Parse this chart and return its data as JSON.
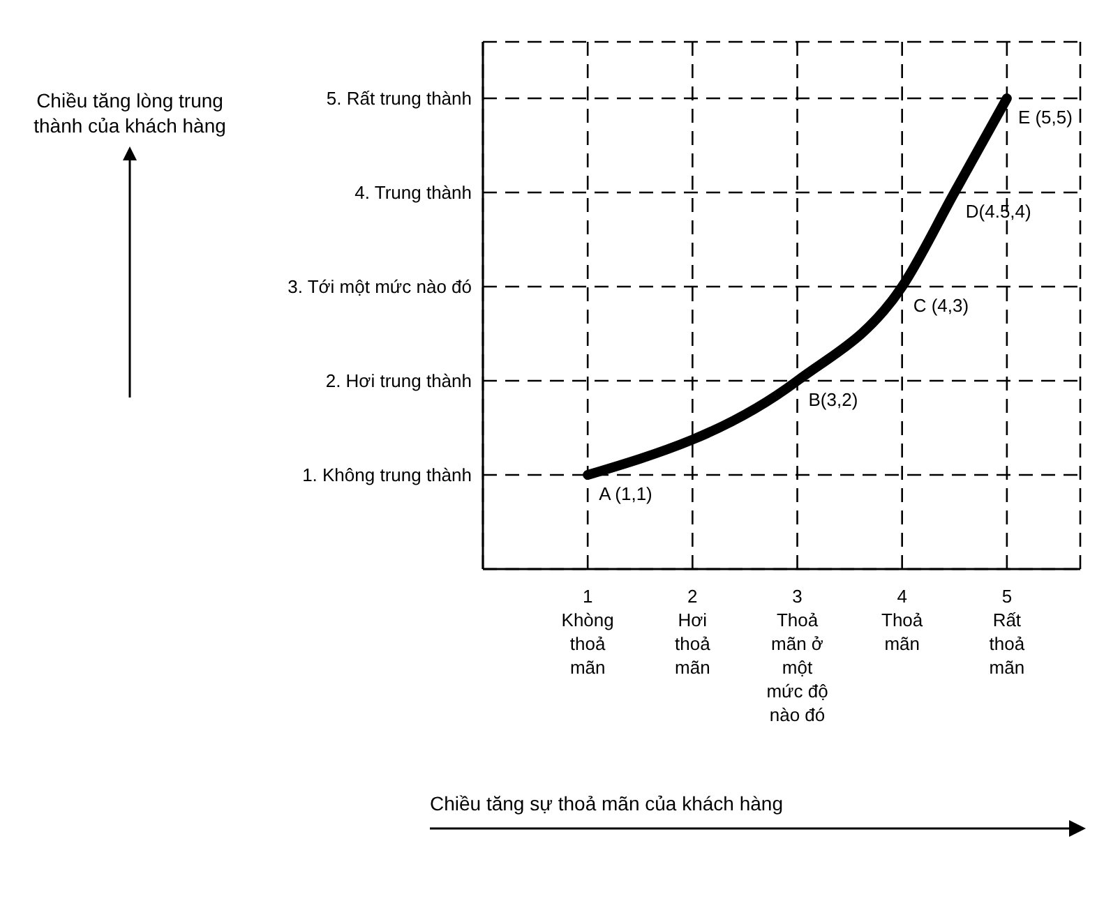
{
  "chart_data": {
    "type": "line",
    "ylabel": "Chiều tăng lòng trung thành của khách hàng",
    "xlabel": "Chiều tăng sự thoả mãn của khách hàng",
    "x": [
      1,
      3,
      4,
      4.5,
      5
    ],
    "series": [
      {
        "color": "#000000",
        "values": [
          1,
          2,
          3,
          4,
          5
        ]
      }
    ],
    "xlim": [
      0,
      5.7
    ],
    "ylim": [
      0,
      5.6
    ],
    "xticks": [
      {
        "value": 1,
        "label": "1\nKhòng\nthoả\nmãn"
      },
      {
        "value": 2,
        "label": "2\nHơi\nthoả\nmãn"
      },
      {
        "value": 3,
        "label": "3\nThoả\nmãn ở\nmột\nmức độ\nnào đó"
      },
      {
        "value": 4,
        "label": "4\nThoả\nmãn"
      },
      {
        "value": 5,
        "label": "5\nRất\nthoả\nmãn"
      }
    ],
    "yticks": [
      {
        "value": 1,
        "label": "1. Không trung thành"
      },
      {
        "value": 2,
        "label": "2. Hơi trung thành"
      },
      {
        "value": 3,
        "label": "3. Tới một mức nào đó"
      },
      {
        "value": 4,
        "label": "4. Trung thành"
      },
      {
        "value": 5,
        "label": "5. Rất trung thành"
      }
    ],
    "grid": true,
    "marker": "none",
    "line_style": "solid",
    "annotations": [
      {
        "text": "A (1,1)",
        "x": 1,
        "y": 1
      },
      {
        "text": "B(3,2)",
        "x": 3,
        "y": 2
      },
      {
        "text": "C (4,3)",
        "x": 4,
        "y": 3
      },
      {
        "text": "D(4.5,4)",
        "x": 4.5,
        "y": 4
      },
      {
        "text": "E (5,5)",
        "x": 5,
        "y": 5
      }
    ]
  }
}
